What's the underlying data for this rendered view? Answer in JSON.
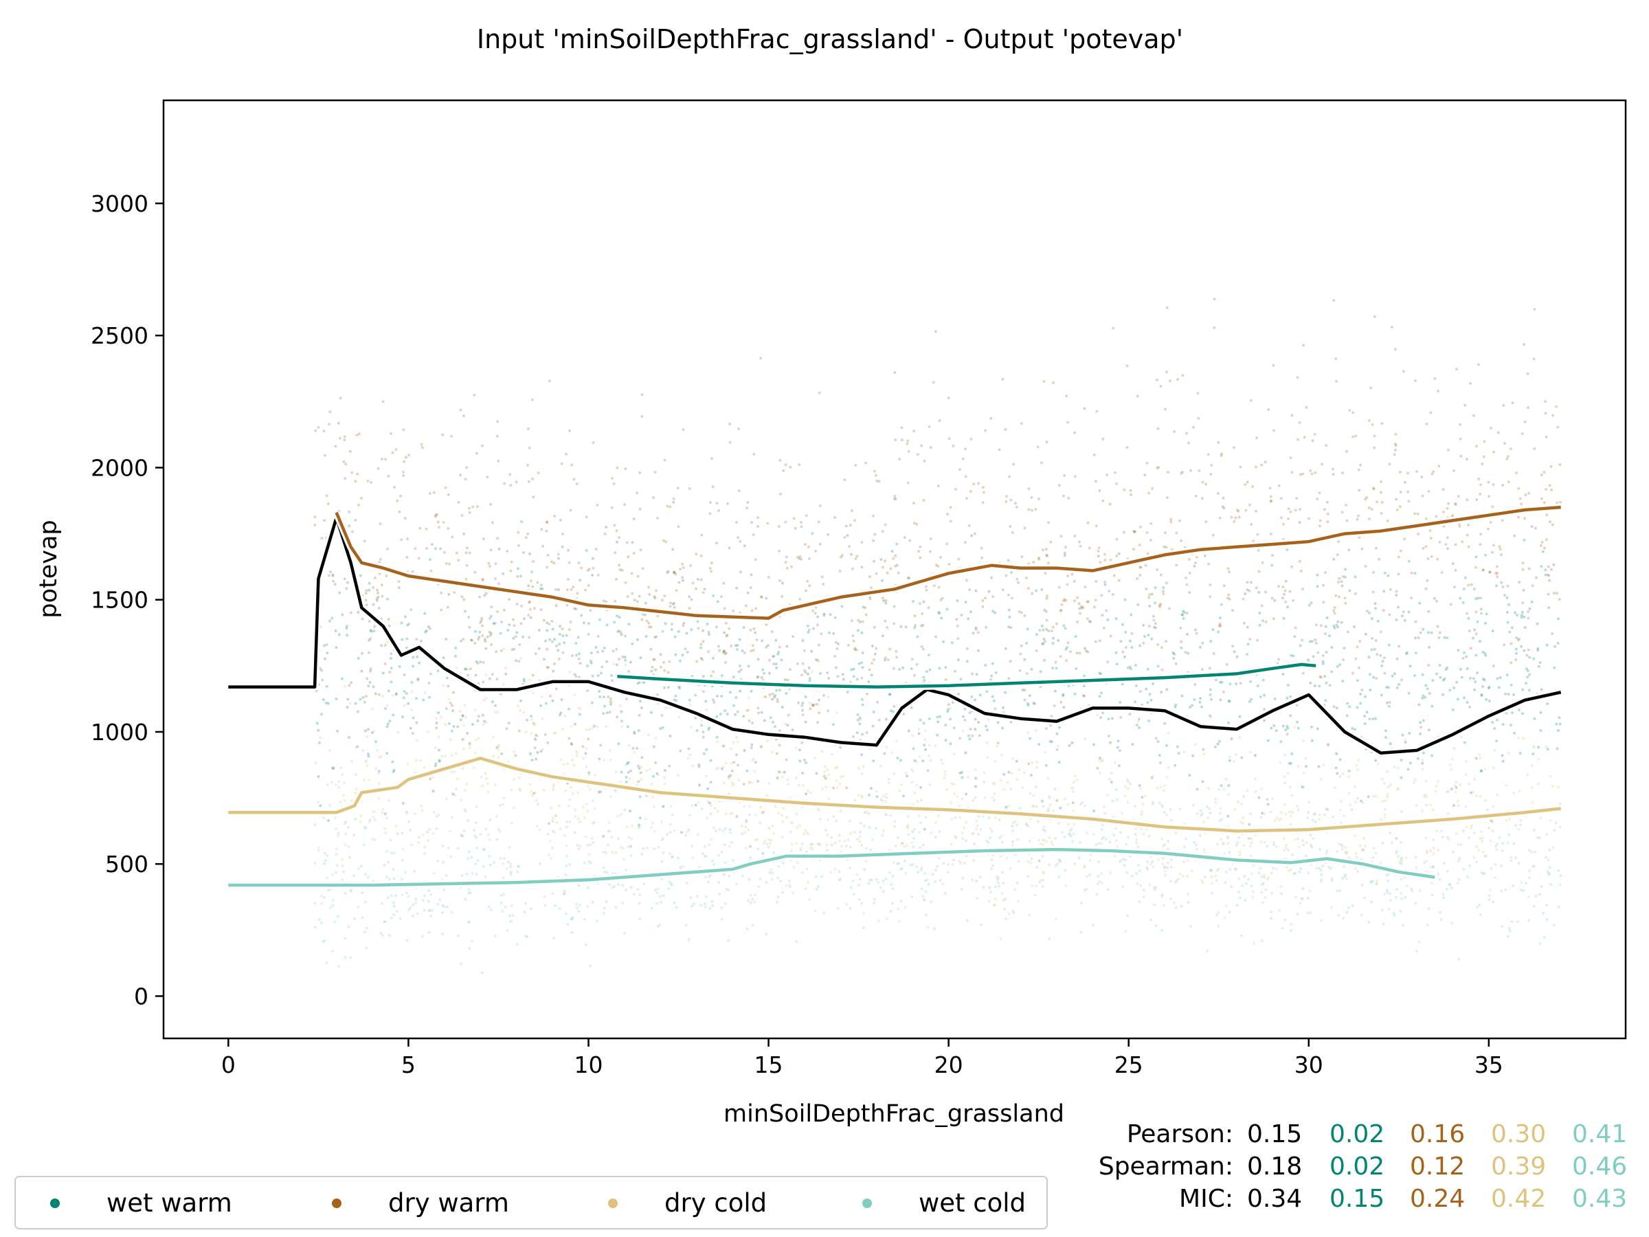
{
  "chart_data": {
    "type": "scatter",
    "title": "Input 'minSoilDepthFrac_grassland' - Output 'potevap'",
    "xlabel": "minSoilDepthFrac_grassland",
    "ylabel": "potevap",
    "xlim": [
      -1.8,
      38.8
    ],
    "ylim": [
      -160,
      3390
    ],
    "xticks": [
      "0",
      "5",
      "10",
      "15",
      "20",
      "25",
      "30",
      "35"
    ],
    "yticks": [
      "0",
      "500",
      "1000",
      "1500",
      "2000",
      "2500",
      "3000"
    ],
    "grid": false,
    "legend_position": "bottom-left",
    "colors": {
      "overall": "#000000",
      "wet_warm": "#018571",
      "dry_warm": "#a6611a",
      "dry_cold": "#dfc27d",
      "wet_cold": "#80cdc1"
    },
    "series": [
      {
        "key": "overall",
        "color": "#000000",
        "x": [
          0,
          2.4,
          2.5,
          3,
          3.4,
          3.7,
          4.3,
          4.8,
          5.3,
          6,
          7,
          8,
          9,
          10,
          11,
          12,
          13,
          14,
          15,
          16,
          17,
          18,
          18.7,
          19.4,
          20,
          21,
          22,
          23,
          24,
          25,
          26,
          27,
          28,
          29,
          30,
          31,
          32,
          33,
          34,
          35,
          36,
          37
        ],
        "y": [
          1170,
          1170,
          1580,
          1810,
          1640,
          1470,
          1400,
          1290,
          1320,
          1240,
          1160,
          1160,
          1190,
          1190,
          1150,
          1120,
          1070,
          1010,
          990,
          980,
          960,
          950,
          1090,
          1160,
          1140,
          1070,
          1050,
          1040,
          1090,
          1090,
          1080,
          1020,
          1010,
          1080,
          1140,
          1000,
          920,
          930,
          990,
          1060,
          1120,
          1150
        ]
      },
      {
        "key": "wet_warm",
        "color": "#018571",
        "x": [
          10.8,
          12,
          14,
          16,
          18,
          20,
          22,
          24,
          26,
          28,
          29,
          29.8,
          30.2
        ],
        "y": [
          1210,
          1200,
          1185,
          1175,
          1170,
          1175,
          1185,
          1195,
          1205,
          1220,
          1240,
          1255,
          1250
        ]
      },
      {
        "key": "dry_warm",
        "color": "#a6611a",
        "x": [
          3,
          3.4,
          3.7,
          4.3,
          5,
          7,
          9,
          10,
          11,
          13,
          15,
          15.4,
          17,
          18.5,
          19,
          20,
          21.2,
          22,
          23,
          24,
          25,
          26,
          27,
          28,
          29,
          30,
          31,
          32,
          33,
          34,
          35,
          36,
          37
        ],
        "y": [
          1830,
          1700,
          1640,
          1620,
          1590,
          1550,
          1510,
          1480,
          1470,
          1440,
          1430,
          1460,
          1510,
          1540,
          1560,
          1600,
          1630,
          1620,
          1620,
          1610,
          1640,
          1670,
          1690,
          1700,
          1710,
          1720,
          1750,
          1760,
          1780,
          1800,
          1820,
          1840,
          1850
        ]
      },
      {
        "key": "dry_cold",
        "color": "#dfc27d",
        "x": [
          0,
          3,
          3.5,
          3.7,
          4.7,
          5,
          6,
          7,
          8,
          9,
          10,
          12,
          14,
          16,
          18,
          20,
          22,
          24,
          26,
          28,
          30,
          32,
          34,
          36,
          37
        ],
        "y": [
          695,
          695,
          720,
          770,
          790,
          820,
          860,
          900,
          860,
          830,
          810,
          770,
          750,
          730,
          715,
          705,
          690,
          670,
          640,
          625,
          630,
          650,
          670,
          695,
          710
        ]
      },
      {
        "key": "wet_cold",
        "color": "#80cdc1",
        "x": [
          0,
          4,
          8,
          10,
          12,
          14,
          14.5,
          15.5,
          17,
          19,
          21,
          23,
          24.5,
          26,
          28,
          29.5,
          30.5,
          31.5,
          32.5,
          33.5
        ],
        "y": [
          420,
          420,
          430,
          440,
          460,
          480,
          500,
          530,
          530,
          540,
          550,
          555,
          550,
          540,
          515,
          505,
          520,
          500,
          470,
          450
        ]
      }
    ],
    "legend": [
      {
        "label": "wet warm",
        "color": "#018571"
      },
      {
        "label": "dry warm",
        "color": "#a6611a"
      },
      {
        "label": "dry cold",
        "color": "#dfc27d"
      },
      {
        "label": "wet cold",
        "color": "#80cdc1"
      }
    ],
    "stats": [
      {
        "label": "Pearson:",
        "values": [
          "0.15",
          "0.02",
          "0.16",
          "0.30",
          "0.41"
        ]
      },
      {
        "label": "Spearman:",
        "values": [
          "0.18",
          "0.02",
          "0.12",
          "0.39",
          "0.46"
        ]
      },
      {
        "label": "MIC:",
        "values": [
          "0.34",
          "0.15",
          "0.24",
          "0.42",
          "0.43"
        ]
      }
    ]
  }
}
